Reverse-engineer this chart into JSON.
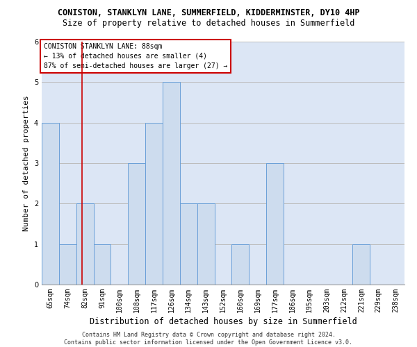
{
  "title1": "CONISTON, STANKLYN LANE, SUMMERFIELD, KIDDERMINSTER, DY10 4HP",
  "title2": "Size of property relative to detached houses in Summerfield",
  "xlabel": "Distribution of detached houses by size in Summerfield",
  "ylabel": "Number of detached properties",
  "categories": [
    "65sqm",
    "74sqm",
    "82sqm",
    "91sqm",
    "100sqm",
    "108sqm",
    "117sqm",
    "126sqm",
    "134sqm",
    "143sqm",
    "152sqm",
    "160sqm",
    "169sqm",
    "177sqm",
    "186sqm",
    "195sqm",
    "203sqm",
    "212sqm",
    "221sqm",
    "229sqm",
    "238sqm"
  ],
  "values": [
    4,
    1,
    2,
    1,
    0,
    3,
    4,
    5,
    2,
    2,
    0,
    1,
    0,
    3,
    0,
    0,
    0,
    0,
    1,
    0,
    0
  ],
  "bar_color": "#cddcee",
  "bar_edge_color": "#6a9fd8",
  "grid_color": "#bbbbbb",
  "bg_color": "#dce6f5",
  "annotation_box_text": "CONISTON STANKLYN LANE: 88sqm\n← 13% of detached houses are smaller (4)\n87% of semi-detached houses are larger (27) →",
  "vline_x_index": 1.85,
  "vline_color": "#cc0000",
  "ylim": [
    0,
    6
  ],
  "yticks": [
    0,
    1,
    2,
    3,
    4,
    5,
    6
  ],
  "footnote": "Contains HM Land Registry data © Crown copyright and database right 2024.\nContains public sector information licensed under the Open Government Licence v3.0.",
  "title1_fontsize": 8.5,
  "title2_fontsize": 8.5,
  "xlabel_fontsize": 8.5,
  "ylabel_fontsize": 8,
  "tick_fontsize": 7,
  "annotation_fontsize": 7,
  "footnote_fontsize": 6
}
